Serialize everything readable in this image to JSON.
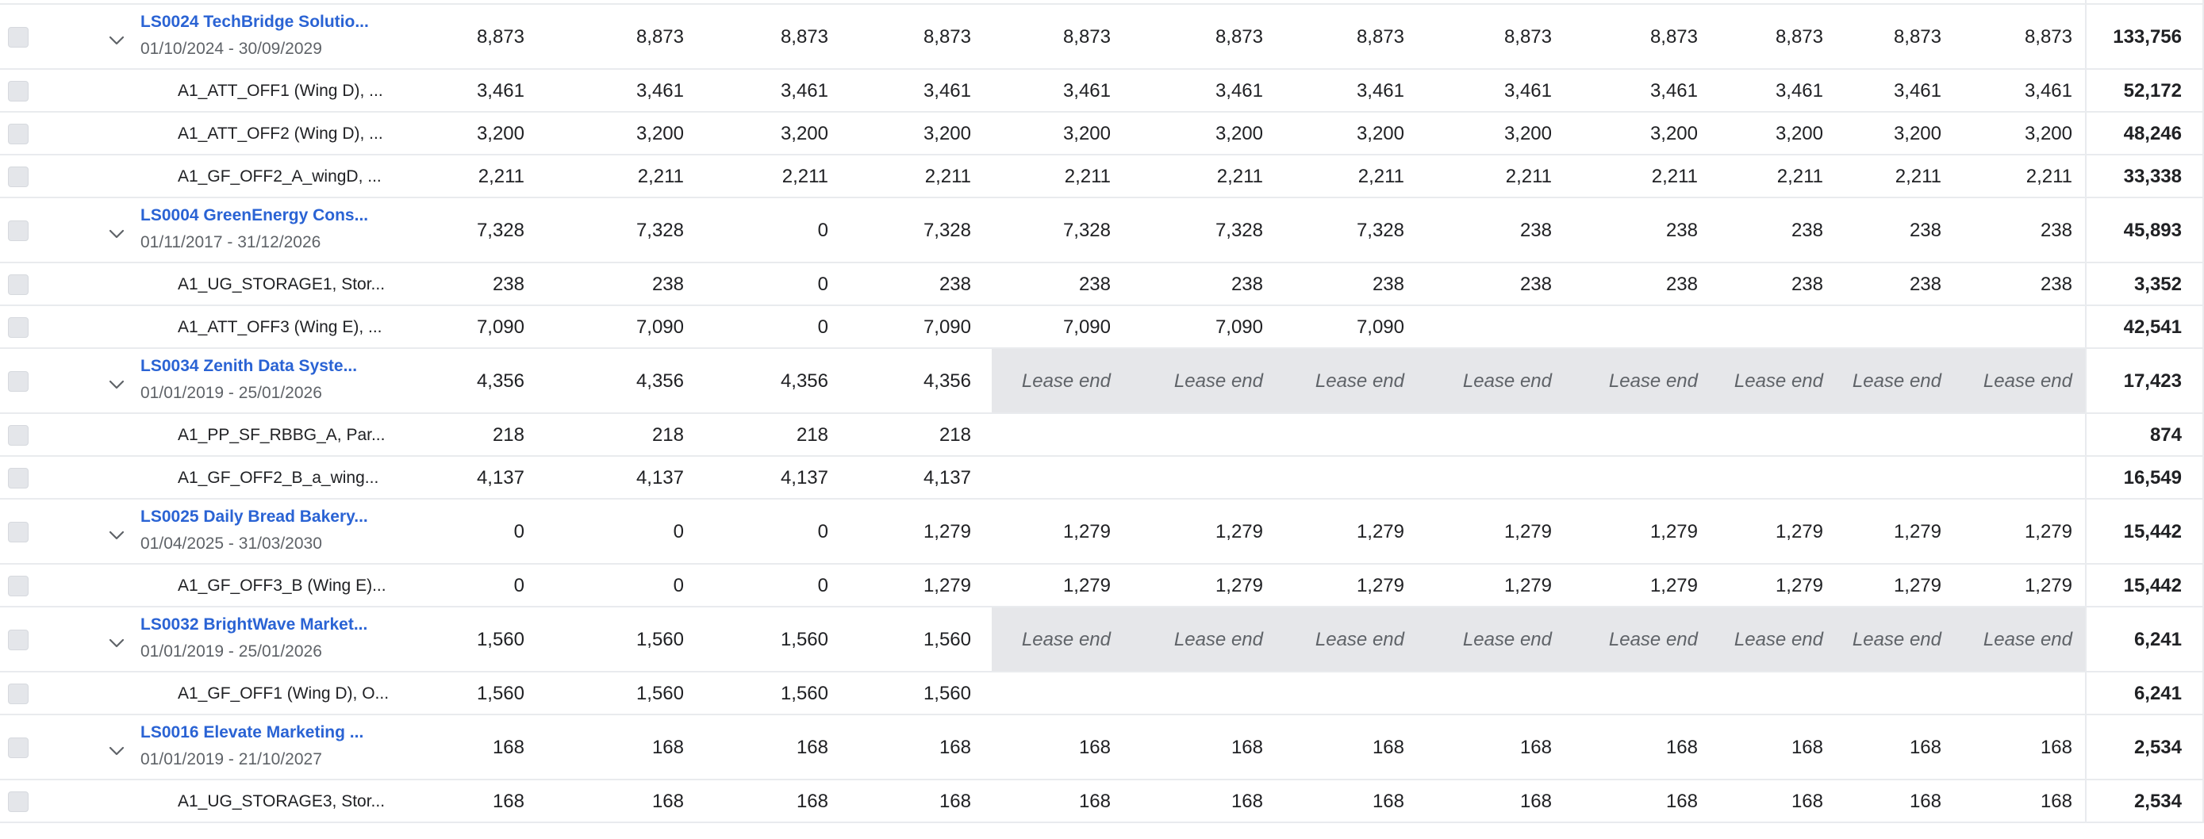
{
  "lease_end_label": "Lease end",
  "rows": [
    {
      "kind": "parent",
      "name": "LS0024 TechBridge Solutio...",
      "dates": "01/10/2024 - 30/09/2029",
      "values": [
        "8,873",
        "8,873",
        "8,873",
        "8,873",
        "8,873",
        "8,873",
        "8,873",
        "8,873",
        "8,873",
        "8,873",
        "8,873",
        "8,873"
      ],
      "total": "133,756"
    },
    {
      "kind": "child",
      "name": "A1_ATT_OFF1 (Wing D), ...",
      "values": [
        "3,461",
        "3,461",
        "3,461",
        "3,461",
        "3,461",
        "3,461",
        "3,461",
        "3,461",
        "3,461",
        "3,461",
        "3,461",
        "3,461"
      ],
      "total": "52,172"
    },
    {
      "kind": "child",
      "name": "A1_ATT_OFF2 (Wing D), ...",
      "values": [
        "3,200",
        "3,200",
        "3,200",
        "3,200",
        "3,200",
        "3,200",
        "3,200",
        "3,200",
        "3,200",
        "3,200",
        "3,200",
        "3,200"
      ],
      "total": "48,246"
    },
    {
      "kind": "child",
      "name": "A1_GF_OFF2_A_wingD, ...",
      "values": [
        "2,211",
        "2,211",
        "2,211",
        "2,211",
        "2,211",
        "2,211",
        "2,211",
        "2,211",
        "2,211",
        "2,211",
        "2,211",
        "2,211"
      ],
      "total": "33,338"
    },
    {
      "kind": "parent",
      "name": "LS0004 GreenEnergy Cons...",
      "dates": "01/11/2017 - 31/12/2026",
      "values": [
        "7,328",
        "7,328",
        "0",
        "7,328",
        "7,328",
        "7,328",
        "7,328",
        "238",
        "238",
        "238",
        "238",
        "238"
      ],
      "total": "45,893"
    },
    {
      "kind": "child",
      "name": "A1_UG_STORAGE1, Stor...",
      "values": [
        "238",
        "238",
        "0",
        "238",
        "238",
        "238",
        "238",
        "238",
        "238",
        "238",
        "238",
        "238"
      ],
      "total": "3,352"
    },
    {
      "kind": "child",
      "name": "A1_ATT_OFF3 (Wing E), ...",
      "values": [
        "7,090",
        "7,090",
        "0",
        "7,090",
        "7,090",
        "7,090",
        "7,090",
        "",
        "",
        "",
        "",
        ""
      ],
      "total": "42,541"
    },
    {
      "kind": "parent",
      "name": "LS0034 Zenith Data Syste...",
      "dates": "01/01/2019 - 25/01/2026",
      "values": [
        "4,356",
        "4,356",
        "4,356",
        "4,356",
        "Lease end",
        "Lease end",
        "Lease end",
        "Lease end",
        "Lease end",
        "Lease end",
        "Lease end",
        "Lease end"
      ],
      "total": "17,423"
    },
    {
      "kind": "child",
      "name": "A1_PP_SF_RBBG_A, Par...",
      "values": [
        "218",
        "218",
        "218",
        "218",
        "",
        "",
        "",
        "",
        "",
        "",
        "",
        ""
      ],
      "total": "874"
    },
    {
      "kind": "child",
      "name": "A1_GF_OFF2_B_a_wing...",
      "values": [
        "4,137",
        "4,137",
        "4,137",
        "4,137",
        "",
        "",
        "",
        "",
        "",
        "",
        "",
        ""
      ],
      "total": "16,549"
    },
    {
      "kind": "parent",
      "name": "LS0025 Daily Bread Bakery...",
      "dates": "01/04/2025 - 31/03/2030",
      "values": [
        "0",
        "0",
        "0",
        "1,279",
        "1,279",
        "1,279",
        "1,279",
        "1,279",
        "1,279",
        "1,279",
        "1,279",
        "1,279"
      ],
      "total": "15,442"
    },
    {
      "kind": "child",
      "name": "A1_GF_OFF3_B (Wing E)...",
      "values": [
        "0",
        "0",
        "0",
        "1,279",
        "1,279",
        "1,279",
        "1,279",
        "1,279",
        "1,279",
        "1,279",
        "1,279",
        "1,279"
      ],
      "total": "15,442"
    },
    {
      "kind": "parent",
      "name": "LS0032 BrightWave Market...",
      "dates": "01/01/2019 - 25/01/2026",
      "values": [
        "1,560",
        "1,560",
        "1,560",
        "1,560",
        "Lease end",
        "Lease end",
        "Lease end",
        "Lease end",
        "Lease end",
        "Lease end",
        "Lease end",
        "Lease end"
      ],
      "total": "6,241"
    },
    {
      "kind": "child",
      "name": "A1_GF_OFF1 (Wing D), O...",
      "values": [
        "1,560",
        "1,560",
        "1,560",
        "1,560",
        "",
        "",
        "",
        "",
        "",
        "",
        "",
        ""
      ],
      "total": "6,241"
    },
    {
      "kind": "parent",
      "name": "LS0016 Elevate Marketing ...",
      "dates": "01/01/2019 - 21/10/2027",
      "values": [
        "168",
        "168",
        "168",
        "168",
        "168",
        "168",
        "168",
        "168",
        "168",
        "168",
        "168",
        "168"
      ],
      "total": "2,534"
    },
    {
      "kind": "child",
      "name": "A1_UG_STORAGE3, Stor...",
      "values": [
        "168",
        "168",
        "168",
        "168",
        "168",
        "168",
        "168",
        "168",
        "168",
        "168",
        "168",
        "168"
      ],
      "total": "2,534"
    }
  ]
}
